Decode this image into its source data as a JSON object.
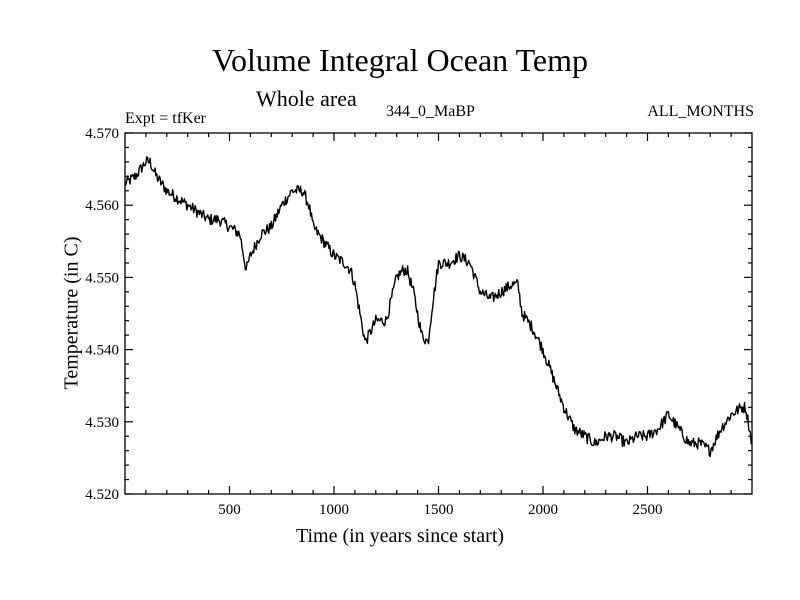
{
  "header": {
    "title": "Volume Integral Ocean Temp",
    "subtitle": "Whole area",
    "expt": "Expt = tfKer",
    "run": "344_0_MaBP",
    "months": "ALL_MONTHS"
  },
  "chart_data": {
    "type": "line",
    "title": "Volume Integral Ocean Temp",
    "subtitle": "Whole area",
    "xlabel": "Time (in years since start)",
    "ylabel": "Temperature (in C)",
    "xlim": [
      0,
      3000
    ],
    "ylim": [
      4.52,
      4.57
    ],
    "x_ticks": [
      500,
      1000,
      1500,
      2000,
      2500
    ],
    "y_ticks": [
      "4.520",
      "4.530",
      "4.540",
      "4.550",
      "4.560",
      "4.570"
    ],
    "grid": false,
    "line_color": "#000000",
    "series": [
      {
        "x": [
          0,
          50,
          100,
          120,
          150,
          200,
          250,
          300,
          350,
          400,
          450,
          500,
          550,
          580,
          600,
          650,
          700,
          750,
          800,
          850,
          880,
          900,
          950,
          1000,
          1050,
          1080,
          1100,
          1130,
          1150,
          1200,
          1250,
          1300,
          1330,
          1350,
          1380,
          1400,
          1420,
          1450,
          1470,
          1500,
          1550,
          1600,
          1650,
          1700,
          1750,
          1800,
          1850,
          1880,
          1900,
          1950,
          2000,
          2050,
          2100,
          2150,
          2200,
          2250,
          2300,
          2350,
          2400,
          2450,
          2500,
          2550,
          2600,
          2650,
          2700,
          2750,
          2800,
          2850,
          2900,
          2950,
          2970,
          3000
        ],
        "y": [
          4.563,
          4.564,
          4.566,
          4.566,
          4.564,
          4.562,
          4.561,
          4.56,
          4.559,
          4.558,
          4.558,
          4.557,
          4.556,
          4.551,
          4.553,
          4.556,
          4.557,
          4.56,
          4.562,
          4.562,
          4.56,
          4.557,
          4.555,
          4.553,
          4.552,
          4.551,
          4.549,
          4.544,
          4.541,
          4.544,
          4.544,
          4.55,
          4.551,
          4.551,
          4.548,
          4.545,
          4.542,
          4.541,
          4.546,
          4.552,
          4.552,
          4.553,
          4.552,
          4.548,
          4.547,
          4.548,
          4.549,
          4.549,
          4.545,
          4.543,
          4.54,
          4.536,
          4.532,
          4.529,
          4.528,
          4.527,
          4.528,
          4.528,
          4.527,
          4.528,
          4.528,
          4.529,
          4.531,
          4.529,
          4.527,
          4.527,
          4.526,
          4.529,
          4.531,
          4.532,
          4.532,
          4.527
        ]
      }
    ]
  }
}
